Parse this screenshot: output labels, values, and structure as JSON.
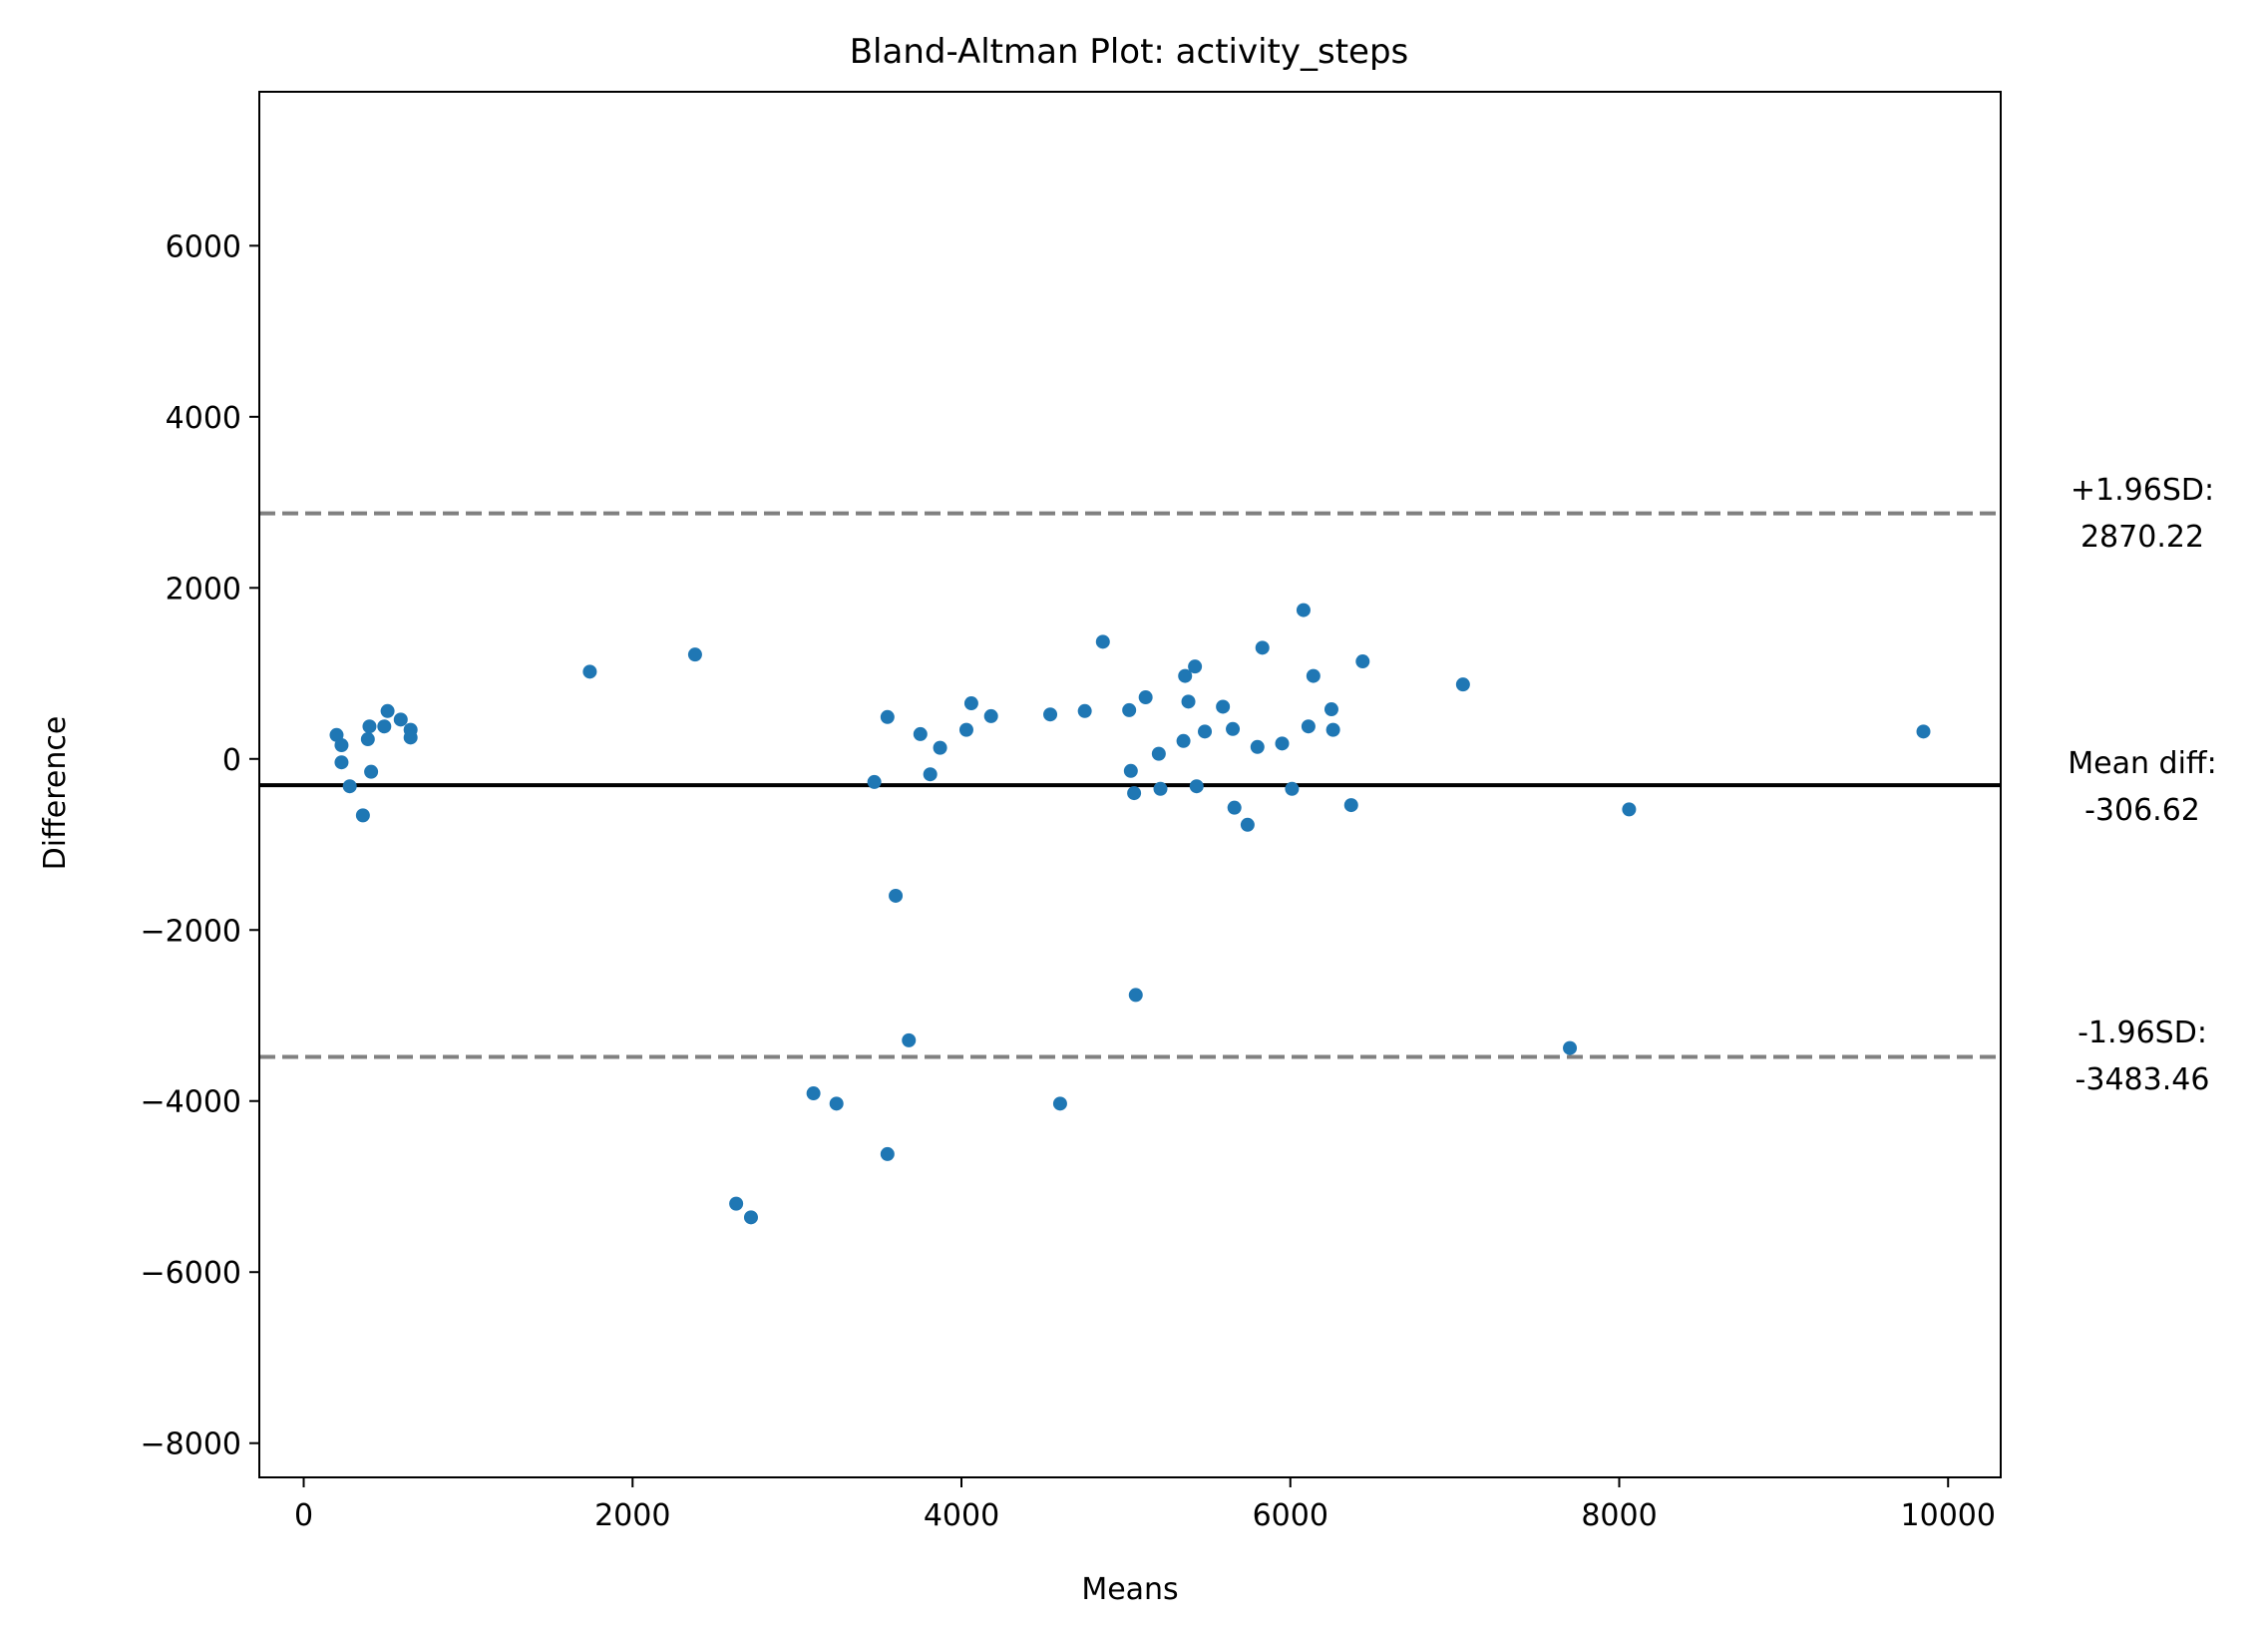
{
  "chart_data": {
    "type": "scatter",
    "title": "Bland-Altman Plot: activity_steps",
    "xlabel": "Means",
    "ylabel": "Difference",
    "xlim": [
      -270,
      10320
    ],
    "ylim": [
      -8400,
      7800
    ],
    "xticks": [
      0,
      2000,
      4000,
      6000,
      8000,
      10000
    ],
    "yticks": [
      -8000,
      -6000,
      -4000,
      -2000,
      0,
      2000,
      4000,
      6000
    ],
    "grid": false,
    "point_color": "#1f77b4",
    "points": [
      [
        200,
        280
      ],
      [
        230,
        160
      ],
      [
        230,
        -40
      ],
      [
        280,
        -320
      ],
      [
        360,
        -660
      ],
      [
        390,
        230
      ],
      [
        400,
        380
      ],
      [
        410,
        -150
      ],
      [
        490,
        380
      ],
      [
        510,
        560
      ],
      [
        590,
        460
      ],
      [
        650,
        340
      ],
      [
        650,
        250
      ],
      [
        1740,
        1020
      ],
      [
        2380,
        1220
      ],
      [
        2630,
        -5200
      ],
      [
        2720,
        -5360
      ],
      [
        3100,
        -3910
      ],
      [
        3240,
        -4030
      ],
      [
        3470,
        -270
      ],
      [
        3550,
        490
      ],
      [
        3550,
        -4620
      ],
      [
        3600,
        -1600
      ],
      [
        3680,
        -3290
      ],
      [
        3750,
        290
      ],
      [
        3810,
        -180
      ],
      [
        3870,
        130
      ],
      [
        4030,
        340
      ],
      [
        4060,
        650
      ],
      [
        4180,
        500
      ],
      [
        4540,
        520
      ],
      [
        4600,
        -4030
      ],
      [
        4750,
        560
      ],
      [
        4860,
        1370
      ],
      [
        5020,
        570
      ],
      [
        5030,
        -140
      ],
      [
        5050,
        -400
      ],
      [
        5060,
        -2760
      ],
      [
        5120,
        720
      ],
      [
        5200,
        60
      ],
      [
        5210,
        -350
      ],
      [
        5350,
        210
      ],
      [
        5360,
        970
      ],
      [
        5380,
        670
      ],
      [
        5420,
        1080
      ],
      [
        5430,
        -320
      ],
      [
        5480,
        320
      ],
      [
        5590,
        610
      ],
      [
        5650,
        350
      ],
      [
        5660,
        -570
      ],
      [
        5740,
        -770
      ],
      [
        5800,
        140
      ],
      [
        5830,
        1300
      ],
      [
        5950,
        180
      ],
      [
        6010,
        -350
      ],
      [
        6080,
        1740
      ],
      [
        6110,
        380
      ],
      [
        6140,
        970
      ],
      [
        6250,
        580
      ],
      [
        6260,
        340
      ],
      [
        6370,
        -540
      ],
      [
        6440,
        1140
      ],
      [
        7050,
        870
      ],
      [
        7700,
        -3380
      ],
      [
        8060,
        -590
      ],
      [
        9850,
        320
      ]
    ],
    "mean_diff": -306.62,
    "upper_loa": 2870.22,
    "lower_loa": -3483.46,
    "annotations": {
      "upper_label": "+1.96SD:",
      "upper_value": "2870.22",
      "mean_label": "Mean diff:",
      "mean_value": "-306.62",
      "lower_label": "-1.96SD:",
      "lower_value": "-3483.46"
    }
  }
}
